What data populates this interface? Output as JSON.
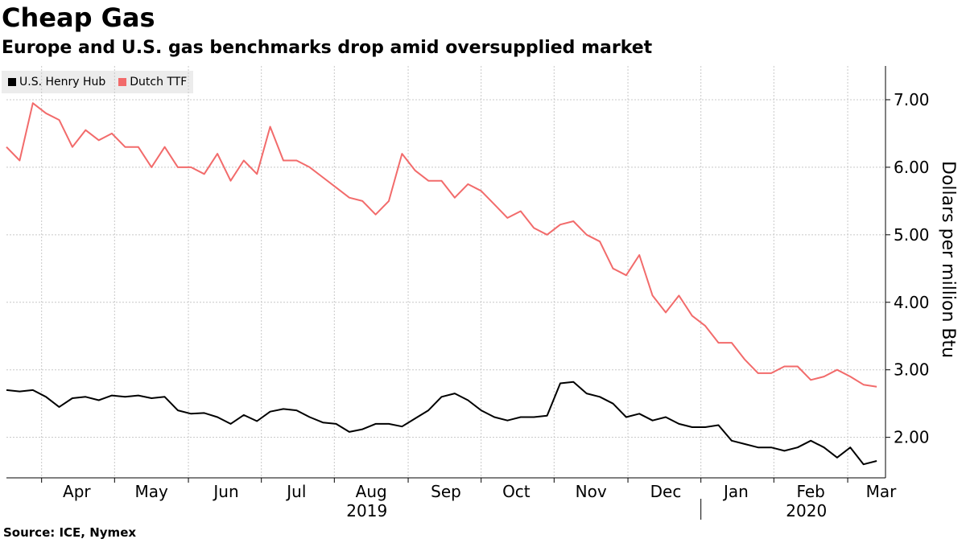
{
  "title": "Cheap Gas",
  "subtitle": "Europe and U.S. gas benchmarks drop amid oversupplied market",
  "source": "Source: ICE, Nymex",
  "chart_data": {
    "type": "line",
    "ylabel": "Dollars per million Btu",
    "ylim": [
      1.4,
      7.5
    ],
    "yticks": [
      2.0,
      3.0,
      4.0,
      5.0,
      6.0,
      7.0
    ],
    "ytick_labels": [
      "2.00",
      "3.00",
      "4.00",
      "5.00",
      "6.00",
      "7.00"
    ],
    "xlim": [
      2019.21,
      2020.21
    ],
    "month_labels": [
      "Apr",
      "May",
      "Jun",
      "Jul",
      "Aug",
      "Sep",
      "Oct",
      "Nov",
      "Dec",
      "Jan",
      "Feb",
      "Mar"
    ],
    "month_label_x": [
      2019.29,
      2019.375,
      2019.46,
      2019.54,
      2019.625,
      2019.71,
      2019.79,
      2019.875,
      2019.96,
      2020.04,
      2020.125,
      2020.205
    ],
    "month_boundaries": [
      2019.25,
      2019.333,
      2019.417,
      2019.5,
      2019.583,
      2019.667,
      2019.75,
      2019.833,
      2019.917,
      2020.0,
      2020.083,
      2020.167
    ],
    "year_labels": [
      "2019",
      "2020"
    ],
    "year_label_x": [
      2019.62,
      2020.12
    ],
    "year_divider_x": 2020.0,
    "colors": {
      "U.S. Henry Hub": "#000000",
      "Dutch TTF": "#f26b6b",
      "grid": "#c8c8c8"
    },
    "series": [
      {
        "name": "U.S. Henry Hub",
        "x": [
          2019.21,
          2019.225,
          2019.24,
          2019.255,
          2019.27,
          2019.285,
          2019.3,
          2019.315,
          2019.33,
          2019.345,
          2019.36,
          2019.375,
          2019.39,
          2019.405,
          2019.42,
          2019.435,
          2019.45,
          2019.465,
          2019.48,
          2019.495,
          2019.51,
          2019.525,
          2019.54,
          2019.555,
          2019.57,
          2019.585,
          2019.6,
          2019.615,
          2019.63,
          2019.645,
          2019.66,
          2019.675,
          2019.69,
          2019.705,
          2019.72,
          2019.735,
          2019.75,
          2019.765,
          2019.78,
          2019.795,
          2019.81,
          2019.825,
          2019.84,
          2019.855,
          2019.87,
          2019.885,
          2019.9,
          2019.915,
          2019.93,
          2019.945,
          2019.96,
          2019.975,
          2019.99,
          2020.005,
          2020.02,
          2020.035,
          2020.05,
          2020.065,
          2020.08,
          2020.095,
          2020.11,
          2020.125,
          2020.14,
          2020.155,
          2020.17,
          2020.185,
          2020.2
        ],
        "values": [
          2.7,
          2.68,
          2.7,
          2.6,
          2.45,
          2.58,
          2.6,
          2.55,
          2.62,
          2.6,
          2.62,
          2.58,
          2.6,
          2.4,
          2.35,
          2.36,
          2.3,
          2.2,
          2.33,
          2.24,
          2.38,
          2.42,
          2.4,
          2.3,
          2.22,
          2.2,
          2.08,
          2.12,
          2.2,
          2.2,
          2.16,
          2.28,
          2.4,
          2.6,
          2.65,
          2.55,
          2.4,
          2.3,
          2.25,
          2.3,
          2.3,
          2.32,
          2.8,
          2.82,
          2.65,
          2.6,
          2.5,
          2.3,
          2.35,
          2.25,
          2.3,
          2.2,
          2.15,
          2.15,
          2.18,
          1.95,
          1.9,
          1.85,
          1.85,
          1.8,
          1.85,
          1.95,
          1.85,
          1.7,
          1.85,
          1.6,
          1.65
        ]
      },
      {
        "name": "Dutch TTF",
        "x": [
          2019.21,
          2019.225,
          2019.24,
          2019.255,
          2019.27,
          2019.285,
          2019.3,
          2019.315,
          2019.33,
          2019.345,
          2019.36,
          2019.375,
          2019.39,
          2019.405,
          2019.42,
          2019.435,
          2019.45,
          2019.465,
          2019.48,
          2019.495,
          2019.51,
          2019.525,
          2019.54,
          2019.555,
          2019.57,
          2019.585,
          2019.6,
          2019.615,
          2019.63,
          2019.645,
          2019.66,
          2019.675,
          2019.69,
          2019.705,
          2019.72,
          2019.735,
          2019.75,
          2019.765,
          2019.78,
          2019.795,
          2019.81,
          2019.825,
          2019.84,
          2019.855,
          2019.87,
          2019.885,
          2019.9,
          2019.915,
          2019.93,
          2019.945,
          2019.96,
          2019.975,
          2019.99,
          2020.005,
          2020.02,
          2020.035,
          2020.05,
          2020.065,
          2020.08,
          2020.095,
          2020.11,
          2020.125,
          2020.14,
          2020.155,
          2020.17,
          2020.185,
          2020.2
        ],
        "values": [
          6.3,
          6.1,
          6.95,
          6.8,
          6.7,
          6.3,
          6.55,
          6.4,
          6.5,
          6.3,
          6.3,
          6.0,
          6.3,
          6.0,
          6.0,
          5.9,
          6.2,
          5.8,
          6.1,
          5.9,
          6.6,
          6.1,
          6.1,
          6.0,
          5.85,
          5.7,
          5.55,
          5.5,
          5.3,
          5.5,
          6.2,
          5.95,
          5.8,
          5.8,
          5.55,
          5.75,
          5.65,
          5.45,
          5.25,
          5.35,
          5.1,
          5.0,
          5.15,
          5.2,
          5.0,
          4.9,
          4.5,
          4.4,
          4.7,
          4.1,
          3.85,
          4.1,
          3.8,
          3.65,
          3.4,
          3.4,
          3.15,
          2.95,
          2.95,
          3.05,
          3.05,
          2.85,
          2.9,
          3.0,
          2.9,
          2.78,
          2.75
        ]
      }
    ]
  }
}
